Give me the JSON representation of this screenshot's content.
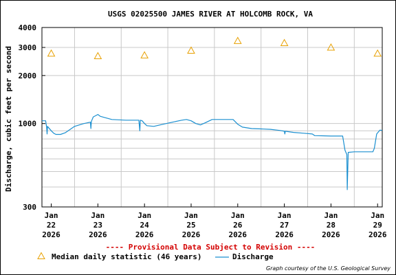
{
  "chart_data": {
    "type": "line",
    "title": "USGS 02025500 JAMES RIVER AT HOLCOMB ROCK, VA",
    "ylabel": "Discharge, cubic feet per second",
    "xlabel": "",
    "y_scale": "log",
    "ylim": [
      300,
      4000
    ],
    "y_ticks": [
      {
        "value": 300,
        "label": "300"
      },
      {
        "value": 1000,
        "label": "1000"
      },
      {
        "value": 2000,
        "label": "2000"
      },
      {
        "value": 3000,
        "label": "3000"
      },
      {
        "value": 4000,
        "label": "4000"
      }
    ],
    "y_minor_gridlines": [
      400,
      500,
      600,
      700,
      800,
      900,
      1000,
      2000,
      3000
    ],
    "x_range_days": [
      -0.2,
      7.1
    ],
    "x_ticks": [
      {
        "day": 0,
        "month": "Jan",
        "dayLabel": "22",
        "year": "2026"
      },
      {
        "day": 1,
        "month": "Jan",
        "dayLabel": "23",
        "year": "2026"
      },
      {
        "day": 2,
        "month": "Jan",
        "dayLabel": "24",
        "year": "2026"
      },
      {
        "day": 3,
        "month": "Jan",
        "dayLabel": "25",
        "year": "2026"
      },
      {
        "day": 4,
        "month": "Jan",
        "dayLabel": "26",
        "year": "2026"
      },
      {
        "day": 5,
        "month": "Jan",
        "dayLabel": "27",
        "year": "2026"
      },
      {
        "day": 6,
        "month": "Jan",
        "dayLabel": "28",
        "year": "2026"
      },
      {
        "day": 7,
        "month": "Jan",
        "dayLabel": "29",
        "year": "2026"
      }
    ],
    "grid": true,
    "series": [
      {
        "name": "Median daily statistic (46 years)",
        "type": "scatter",
        "marker": "triangle",
        "color": "#e8a000",
        "points": [
          {
            "x": 0,
            "y": 2750
          },
          {
            "x": 1,
            "y": 2650
          },
          {
            "x": 2,
            "y": 2680
          },
          {
            "x": 3,
            "y": 2870
          },
          {
            "x": 4,
            "y": 3300
          },
          {
            "x": 5,
            "y": 3200
          },
          {
            "x": 6,
            "y": 3000
          },
          {
            "x": 7,
            "y": 2750
          }
        ]
      },
      {
        "name": "Discharge",
        "type": "line",
        "color": "#1a8fd0",
        "points": [
          [
            -0.45,
            1040
          ],
          [
            -0.12,
            1040
          ],
          [
            -0.1,
            950
          ],
          [
            -0.09,
            860
          ],
          [
            -0.08,
            960
          ],
          [
            0.0,
            900
          ],
          [
            0.05,
            870
          ],
          [
            0.1,
            855
          ],
          [
            0.2,
            855
          ],
          [
            0.3,
            875
          ],
          [
            0.5,
            960
          ],
          [
            0.7,
            1000
          ],
          [
            0.84,
            1020
          ],
          [
            0.85,
            930
          ],
          [
            0.86,
            1030
          ],
          [
            0.9,
            1100
          ],
          [
            1.0,
            1140
          ],
          [
            1.05,
            1110
          ],
          [
            1.3,
            1060
          ],
          [
            1.6,
            1050
          ],
          [
            1.88,
            1050
          ],
          [
            1.9,
            900
          ],
          [
            1.91,
            1050
          ],
          [
            1.95,
            1040
          ],
          [
            2.0,
            1000
          ],
          [
            2.05,
            970
          ],
          [
            2.2,
            960
          ],
          [
            2.4,
            990
          ],
          [
            2.6,
            1020
          ],
          [
            2.8,
            1050
          ],
          [
            2.9,
            1060
          ],
          [
            3.0,
            1040
          ],
          [
            3.1,
            1000
          ],
          [
            3.2,
            980
          ],
          [
            3.3,
            1010
          ],
          [
            3.45,
            1060
          ],
          [
            3.7,
            1060
          ],
          [
            3.9,
            1060
          ],
          [
            4.0,
            990
          ],
          [
            4.1,
            950
          ],
          [
            4.3,
            930
          ],
          [
            4.5,
            925
          ],
          [
            4.7,
            920
          ],
          [
            4.9,
            905
          ],
          [
            5.0,
            895
          ],
          [
            5.01,
            860
          ],
          [
            5.02,
            895
          ],
          [
            5.2,
            880
          ],
          [
            5.4,
            870
          ],
          [
            5.6,
            860
          ],
          [
            5.65,
            840
          ],
          [
            5.8,
            838
          ],
          [
            6.0,
            835
          ],
          [
            6.25,
            835
          ],
          [
            6.3,
            680
          ],
          [
            6.34,
            640
          ],
          [
            6.35,
            385
          ],
          [
            6.37,
            660
          ],
          [
            6.5,
            665
          ],
          [
            6.7,
            665
          ],
          [
            6.9,
            665
          ],
          [
            6.93,
            700
          ],
          [
            6.98,
            860
          ],
          [
            7.05,
            910
          ],
          [
            7.1,
            905
          ]
        ]
      }
    ],
    "annotation": "---- Provisional Data Subject to Revision ----",
    "annotation_color": "#d40000",
    "courtesy": "Graph courtesy of the U.S. Geological Survey",
    "legend_placement": "bottom"
  }
}
